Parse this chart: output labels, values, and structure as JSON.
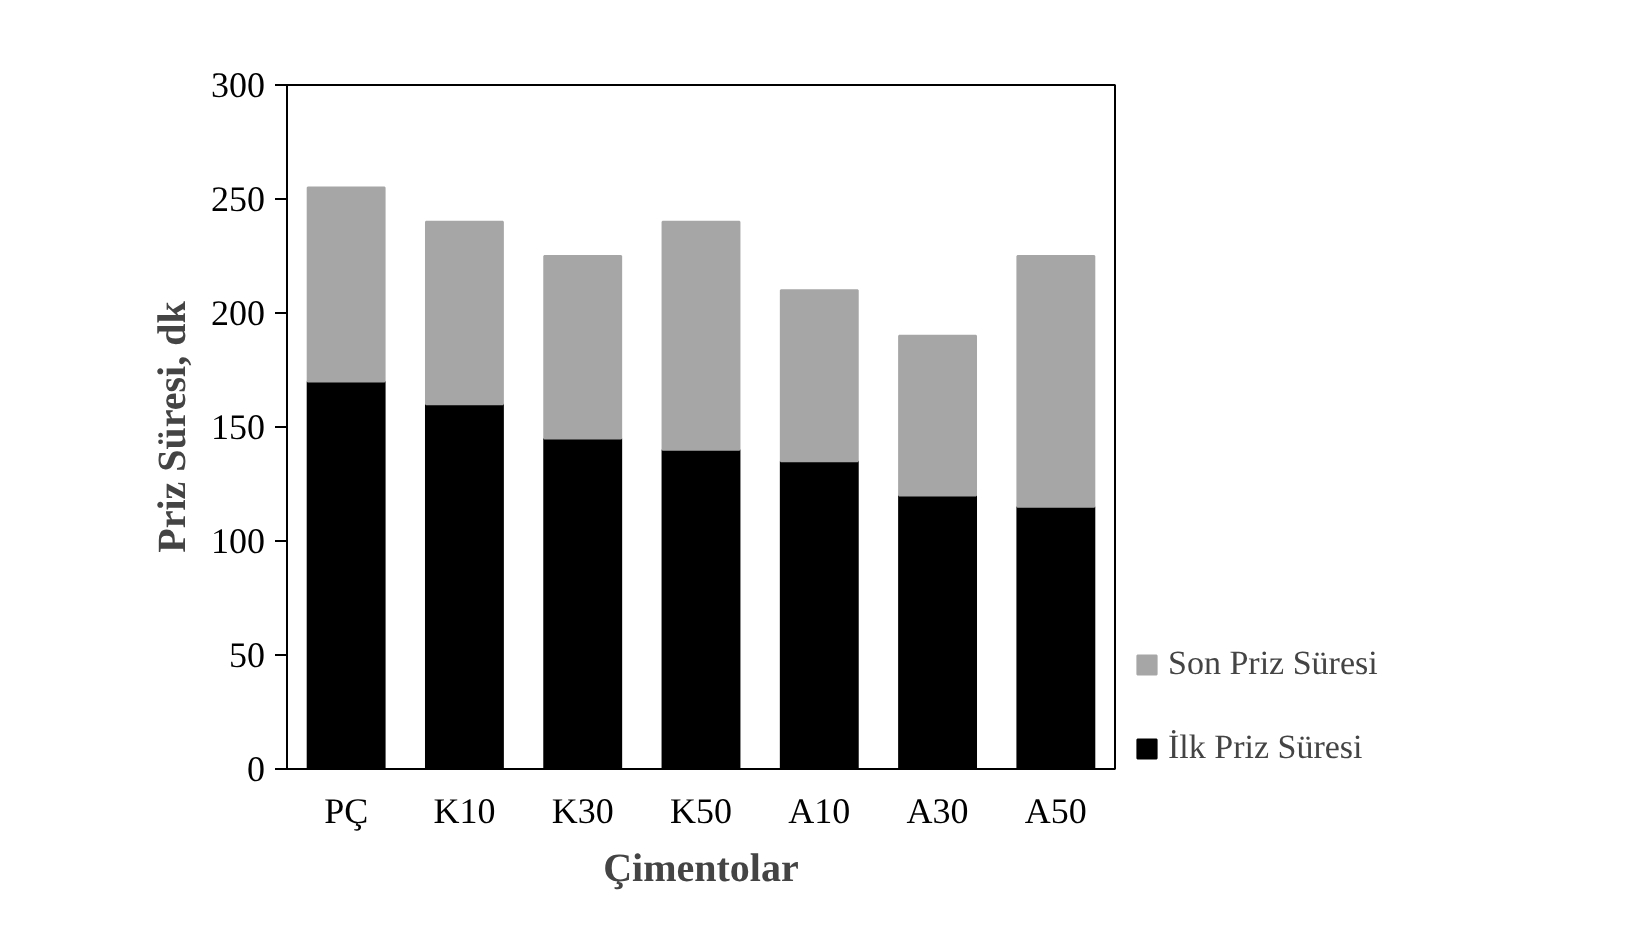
{
  "chart_data": {
    "type": "bar",
    "stacked": true,
    "xlabel": "Çimentolar",
    "ylabel": "Priz Süresi, dk",
    "categories": [
      "PÇ",
      "K10",
      "K30",
      "K50",
      "A10",
      "A30",
      "A50"
    ],
    "series": [
      {
        "name": "İlk Priz Süresi",
        "color": "#000000",
        "values": [
          170,
          160,
          145,
          140,
          135,
          120,
          115
        ]
      },
      {
        "name": "Son Priz Süresi",
        "color": "#a6a6a6",
        "values": [
          85,
          80,
          80,
          100,
          75,
          70,
          110
        ]
      }
    ],
    "ylim": [
      0,
      300
    ],
    "yticks": [
      0,
      50,
      100,
      150,
      200,
      250,
      300
    ],
    "grid": false,
    "legend": "right"
  }
}
